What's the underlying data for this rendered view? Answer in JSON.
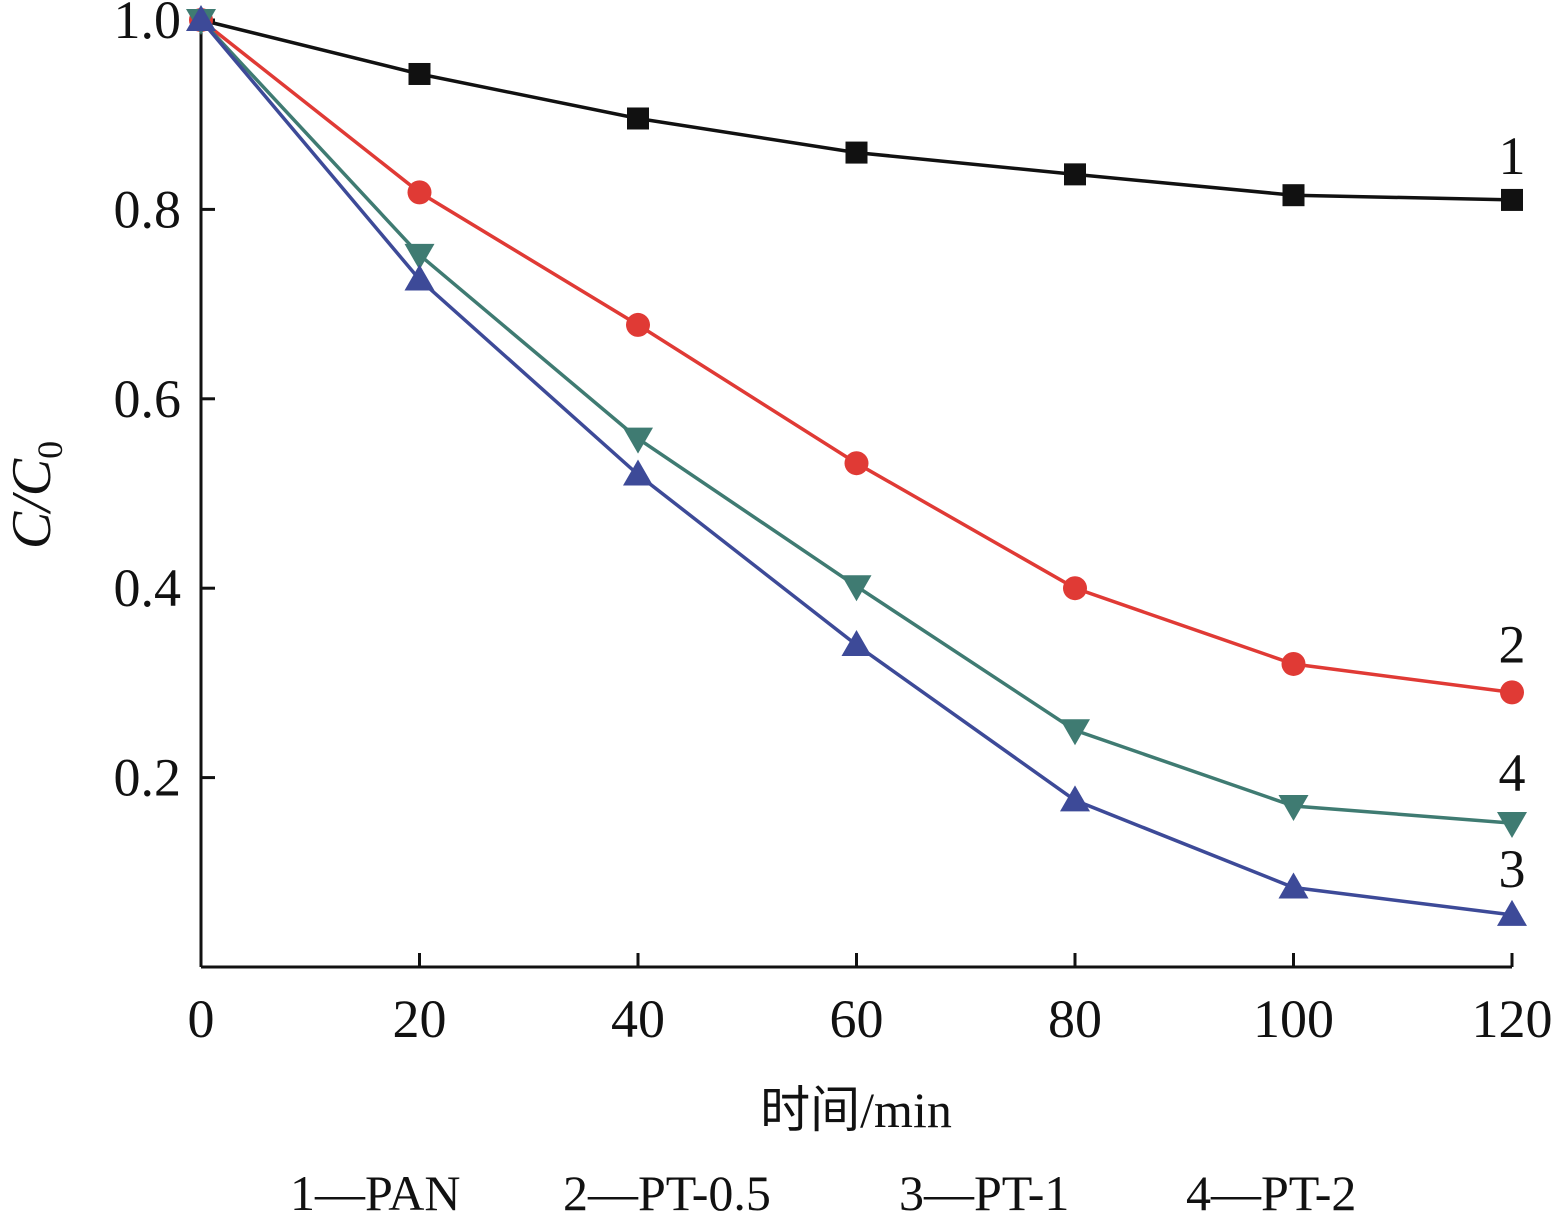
{
  "chart_data": {
    "type": "line",
    "x": [
      0,
      20,
      40,
      60,
      80,
      100,
      120
    ],
    "xlim": [
      0,
      120
    ],
    "ylim": [
      0,
      1.0
    ],
    "x_ticks": [
      "0",
      "20",
      "40",
      "60",
      "80",
      "100",
      "120"
    ],
    "y_ticks": [
      "0.2",
      "0.4",
      "0.6",
      "0.8",
      "1.0"
    ],
    "xlabel": "时间/min",
    "ylabel": {
      "main": "C/C",
      "sub": "0"
    },
    "grid": false,
    "series": [
      {
        "label": "1",
        "values": [
          1.0,
          0.943,
          0.896,
          0.86,
          0.837,
          0.815,
          0.81
        ],
        "color": "#111111",
        "marker": "square"
      },
      {
        "label": "2",
        "values": [
          1.0,
          0.818,
          0.678,
          0.532,
          0.4,
          0.32,
          0.29
        ],
        "color": "#e03a35",
        "marker": "circle"
      },
      {
        "label": "3",
        "values": [
          1.0,
          0.726,
          0.52,
          0.34,
          0.176,
          0.084,
          0.055
        ],
        "color": "#3d4a98",
        "marker": "triangle-up"
      },
      {
        "label": "4",
        "values": [
          1.0,
          0.752,
          0.558,
          0.402,
          0.25,
          0.17,
          0.152
        ],
        "color": "#3f7b72",
        "marker": "triangle-down"
      }
    ],
    "legend": {
      "placement": "bottom",
      "entries": [
        "1—PAN",
        "2—PT-0.5",
        "3—PT-1",
        "4—PT-2"
      ]
    }
  }
}
